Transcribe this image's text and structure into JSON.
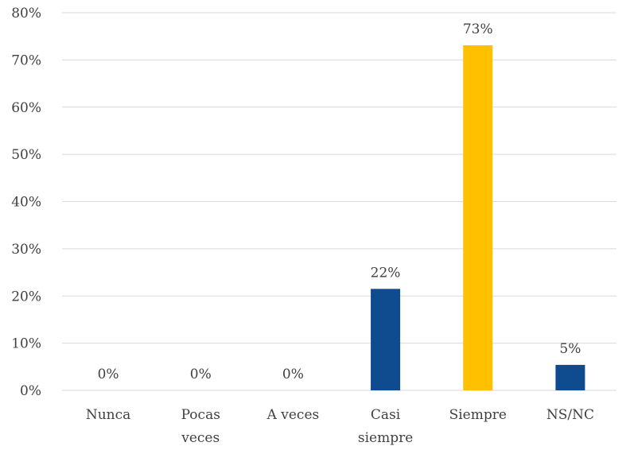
{
  "chart_data": {
    "type": "bar",
    "title": "",
    "xlabel": "",
    "ylabel": "",
    "ylim": [
      0,
      80
    ],
    "y_ticks": [
      0,
      10,
      20,
      30,
      40,
      50,
      60,
      70,
      80
    ],
    "y_tick_labels": [
      "0%",
      "10%",
      "20%",
      "30%",
      "40%",
      "50%",
      "60%",
      "70%",
      "80%"
    ],
    "grid": true,
    "legend": "none",
    "categories": [
      [
        "Nunca"
      ],
      [
        "Pocas",
        "veces"
      ],
      [
        "A veces"
      ],
      [
        "Casi",
        "siempre"
      ],
      [
        "Siempre"
      ],
      [
        "NS/NC"
      ]
    ],
    "values": [
      0,
      0,
      0,
      21.5,
      73.1,
      5.4
    ],
    "data_labels": [
      "0%",
      "0%",
      "0%",
      "22%",
      "73%",
      "5%"
    ],
    "colors": [
      "#0f4c8f",
      "#0f4c8f",
      "#0f4c8f",
      "#0f4c8f",
      "#ffc000",
      "#0f4c8f"
    ],
    "grid_color": "#d9d9d9",
    "text_color": "#404040"
  }
}
